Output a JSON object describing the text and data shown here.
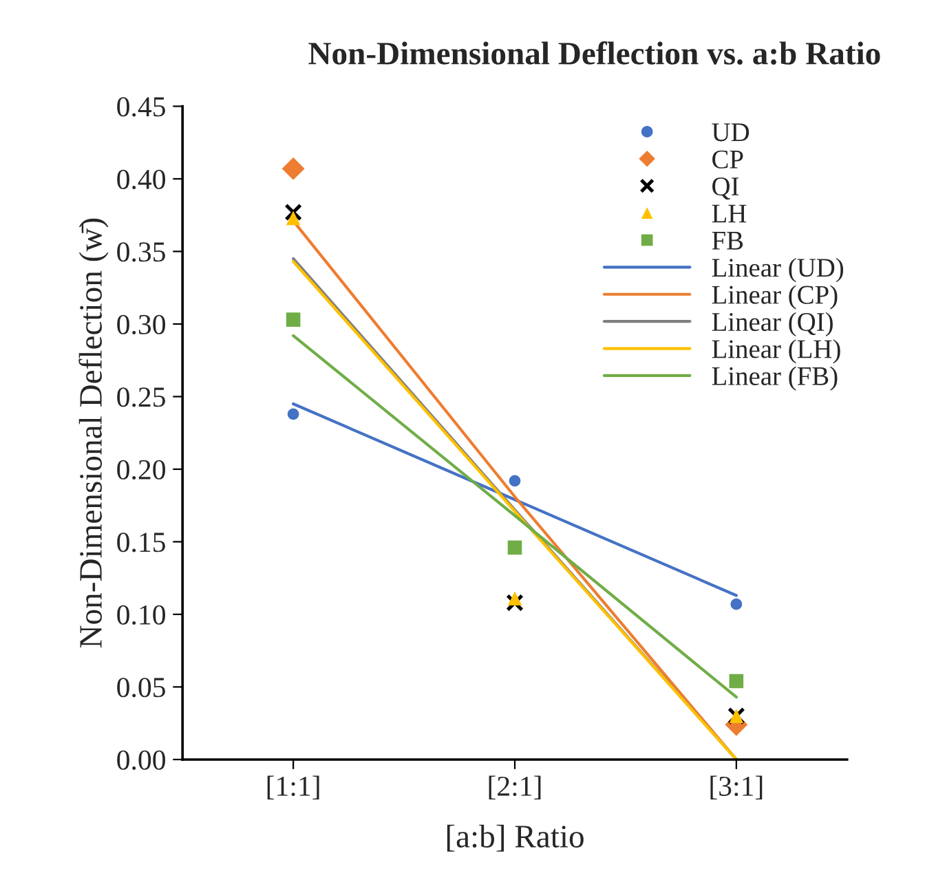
{
  "chart_data": {
    "type": "scatter",
    "title": "Non-Dimensional Deflection vs. a:b Ratio",
    "xlabel": "[a:b] Ratio",
    "ylabel": "Non-Dimensional Deflection (w̄)",
    "categories": [
      "[1:1]",
      "[2:1]",
      "[3:1]"
    ],
    "ylim": [
      0,
      0.45
    ],
    "yticks": [
      {
        "value": 0,
        "label": "0.00"
      },
      {
        "value": 0.05,
        "label": "0.05"
      },
      {
        "value": 0.1,
        "label": "0.10"
      },
      {
        "value": 0.15,
        "label": "0.15"
      },
      {
        "value": 0.2,
        "label": "0.20"
      },
      {
        "value": 0.25,
        "label": "0.25"
      },
      {
        "value": 0.3,
        "label": "0.30"
      },
      {
        "value": 0.35,
        "label": "0.35"
      },
      {
        "value": 0.4,
        "label": "0.40"
      },
      {
        "value": 0.45,
        "label": "0.45"
      }
    ],
    "grid": false,
    "legend": "top right",
    "series": [
      {
        "name": "UD",
        "marker": "circle",
        "color": "#4472c4",
        "values": [
          0.238,
          0.192,
          0.107
        ]
      },
      {
        "name": "CP",
        "marker": "diamond",
        "color": "#ed7d31",
        "values": [
          0.407,
          null,
          0.024
        ]
      },
      {
        "name": "QI",
        "marker": "cross",
        "color": "#000000",
        "values": [
          0.377,
          0.108,
          0.03
        ]
      },
      {
        "name": "LH",
        "marker": "triangle",
        "color": "#ffc000",
        "values": [
          0.373,
          0.111,
          0.03
        ]
      },
      {
        "name": "FB",
        "marker": "square",
        "color": "#70ad47",
        "values": [
          0.303,
          0.146,
          0.054
        ]
      },
      {
        "name": "Linear (UD)",
        "type": "line",
        "color": "#4472c4",
        "values": [
          0.245,
          0.179,
          0.113
        ]
      },
      {
        "name": "Linear (CP)",
        "type": "line",
        "color": "#ed7d31",
        "values": [
          0.371,
          0.181,
          0.0
        ]
      },
      {
        "name": "Linear (QI)",
        "type": "line",
        "color": "#7f7f7f",
        "values": [
          0.345,
          0.172,
          0.0
        ]
      },
      {
        "name": "Linear (LH)",
        "type": "line",
        "color": "#ffc000",
        "values": [
          0.343,
          0.171,
          0.0
        ]
      },
      {
        "name": "Linear (FB)",
        "type": "line",
        "color": "#70ad47",
        "values": [
          0.292,
          0.168,
          0.043
        ]
      }
    ]
  }
}
